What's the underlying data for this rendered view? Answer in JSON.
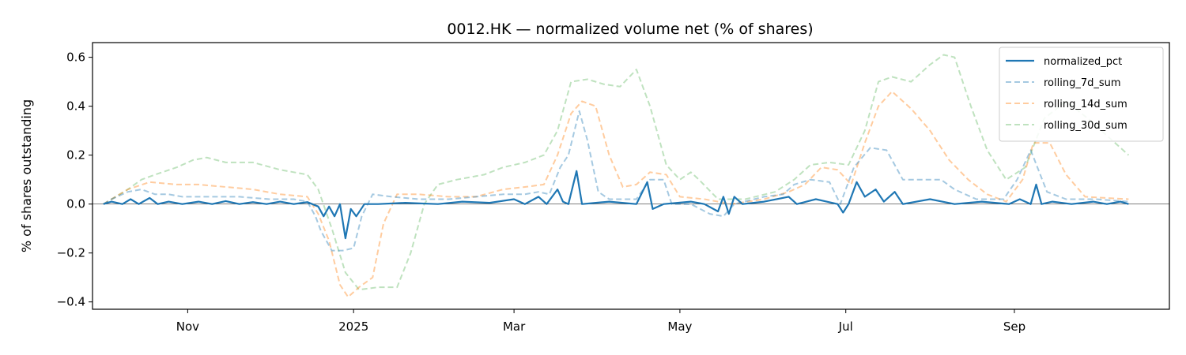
{
  "chart_data": {
    "type": "line",
    "title": "0012.HK — normalized volume net (% of shares)",
    "xlabel": "",
    "ylabel": "% of shares outstanding",
    "x_ticks": [
      {
        "date": "2024-11-01",
        "label": "Nov"
      },
      {
        "date": "2025-01-01",
        "label": "2025"
      },
      {
        "date": "2025-03-01",
        "label": "Mar"
      },
      {
        "date": "2025-05-01",
        "label": "May"
      },
      {
        "date": "2025-07-01",
        "label": "Jul"
      },
      {
        "date": "2025-09-01",
        "label": "Sep"
      }
    ],
    "xlim": [
      "2024-09-27",
      "2025-10-28"
    ],
    "y_ticks": [
      -0.4,
      -0.2,
      0.0,
      0.2,
      0.4,
      0.6
    ],
    "ylim": [
      -0.43,
      0.66
    ],
    "zero_line": true,
    "grid": false,
    "legend_position": "upper right",
    "series": [
      {
        "name": "normalized_pct",
        "color": "#1f77b4",
        "style": "solid",
        "opacity": 1.0,
        "points": [
          [
            "2024-10-01",
            0.0
          ],
          [
            "2024-10-04",
            0.01
          ],
          [
            "2024-10-08",
            0.0
          ],
          [
            "2024-10-11",
            0.02
          ],
          [
            "2024-10-14",
            0.0
          ],
          [
            "2024-10-18",
            0.025
          ],
          [
            "2024-10-21",
            0.0
          ],
          [
            "2024-10-25",
            0.01
          ],
          [
            "2024-10-30",
            0.0
          ],
          [
            "2024-11-05",
            0.01
          ],
          [
            "2024-11-10",
            0.0
          ],
          [
            "2024-11-15",
            0.012
          ],
          [
            "2024-11-20",
            0.0
          ],
          [
            "2024-11-25",
            0.008
          ],
          [
            "2024-11-30",
            0.0
          ],
          [
            "2024-12-05",
            0.01
          ],
          [
            "2024-12-10",
            0.0
          ],
          [
            "2024-12-15",
            0.008
          ],
          [
            "2024-12-19",
            -0.01
          ],
          [
            "2024-12-21",
            -0.05
          ],
          [
            "2024-12-23",
            -0.01
          ],
          [
            "2024-12-25",
            -0.05
          ],
          [
            "2024-12-27",
            0.0
          ],
          [
            "2024-12-29",
            -0.14
          ],
          [
            "2024-12-31",
            -0.02
          ],
          [
            "2025-01-02",
            -0.05
          ],
          [
            "2025-01-05",
            0.0
          ],
          [
            "2025-01-10",
            0.0
          ],
          [
            "2025-01-20",
            0.005
          ],
          [
            "2025-02-01",
            0.0
          ],
          [
            "2025-02-10",
            0.01
          ],
          [
            "2025-02-20",
            0.005
          ],
          [
            "2025-03-01",
            0.02
          ],
          [
            "2025-03-05",
            0.0
          ],
          [
            "2025-03-10",
            0.03
          ],
          [
            "2025-03-13",
            0.0
          ],
          [
            "2025-03-17",
            0.06
          ],
          [
            "2025-03-19",
            0.01
          ],
          [
            "2025-03-21",
            0.0
          ],
          [
            "2025-03-24",
            0.135
          ],
          [
            "2025-03-26",
            0.0
          ],
          [
            "2025-04-05",
            0.01
          ],
          [
            "2025-04-15",
            0.0
          ],
          [
            "2025-04-19",
            0.09
          ],
          [
            "2025-04-21",
            -0.02
          ],
          [
            "2025-04-25",
            0.0
          ],
          [
            "2025-05-05",
            0.01
          ],
          [
            "2025-05-10",
            0.0
          ],
          [
            "2025-05-15",
            -0.03
          ],
          [
            "2025-05-17",
            0.03
          ],
          [
            "2025-05-19",
            -0.04
          ],
          [
            "2025-05-21",
            0.03
          ],
          [
            "2025-05-24",
            0.0
          ],
          [
            "2025-06-01",
            0.01
          ],
          [
            "2025-06-10",
            0.03
          ],
          [
            "2025-06-13",
            0.0
          ],
          [
            "2025-06-20",
            0.02
          ],
          [
            "2025-06-28",
            0.0
          ],
          [
            "2025-06-30",
            -0.035
          ],
          [
            "2025-07-02",
            0.0
          ],
          [
            "2025-07-05",
            0.09
          ],
          [
            "2025-07-08",
            0.03
          ],
          [
            "2025-07-12",
            0.06
          ],
          [
            "2025-07-15",
            0.01
          ],
          [
            "2025-07-19",
            0.05
          ],
          [
            "2025-07-22",
            0.0
          ],
          [
            "2025-08-01",
            0.02
          ],
          [
            "2025-08-10",
            0.0
          ],
          [
            "2025-08-20",
            0.01
          ],
          [
            "2025-08-30",
            0.0
          ],
          [
            "2025-09-03",
            0.02
          ],
          [
            "2025-09-07",
            0.0
          ],
          [
            "2025-09-09",
            0.08
          ],
          [
            "2025-09-11",
            0.0
          ],
          [
            "2025-09-15",
            0.01
          ],
          [
            "2025-09-22",
            0.0
          ],
          [
            "2025-09-30",
            0.01
          ],
          [
            "2025-10-05",
            0.0
          ],
          [
            "2025-10-10",
            0.01
          ],
          [
            "2025-10-13",
            0.0
          ]
        ]
      },
      {
        "name": "rolling_7d_sum",
        "color": "#1f77b4",
        "style": "dashed",
        "opacity": 0.4,
        "points": [
          [
            "2024-10-01",
            0.0
          ],
          [
            "2024-10-04",
            0.02
          ],
          [
            "2024-10-10",
            0.05
          ],
          [
            "2024-10-15",
            0.06
          ],
          [
            "2024-10-20",
            0.04
          ],
          [
            "2024-10-25",
            0.04
          ],
          [
            "2024-10-30",
            0.03
          ],
          [
            "2024-11-10",
            0.03
          ],
          [
            "2024-11-20",
            0.03
          ],
          [
            "2024-12-01",
            0.02
          ],
          [
            "2024-12-10",
            0.02
          ],
          [
            "2024-12-15",
            0.01
          ],
          [
            "2024-12-18",
            -0.05
          ],
          [
            "2024-12-20",
            -0.11
          ],
          [
            "2024-12-24",
            -0.19
          ],
          [
            "2024-12-28",
            -0.19
          ],
          [
            "2025-01-01",
            -0.18
          ],
          [
            "2025-01-04",
            -0.05
          ],
          [
            "2025-01-08",
            0.04
          ],
          [
            "2025-01-15",
            0.03
          ],
          [
            "2025-01-25",
            0.02
          ],
          [
            "2025-02-05",
            0.02
          ],
          [
            "2025-02-15",
            0.03
          ],
          [
            "2025-02-25",
            0.04
          ],
          [
            "2025-03-05",
            0.04
          ],
          [
            "2025-03-10",
            0.05
          ],
          [
            "2025-03-14",
            0.04
          ],
          [
            "2025-03-18",
            0.15
          ],
          [
            "2025-03-21",
            0.2
          ],
          [
            "2025-03-25",
            0.38
          ],
          [
            "2025-03-28",
            0.26
          ],
          [
            "2025-04-01",
            0.05
          ],
          [
            "2025-04-05",
            0.02
          ],
          [
            "2025-04-15",
            0.02
          ],
          [
            "2025-04-20",
            0.1
          ],
          [
            "2025-04-25",
            0.1
          ],
          [
            "2025-04-28",
            0.0
          ],
          [
            "2025-05-05",
            0.0
          ],
          [
            "2025-05-12",
            -0.04
          ],
          [
            "2025-05-17",
            -0.05
          ],
          [
            "2025-05-21",
            0.0
          ],
          [
            "2025-06-01",
            0.03
          ],
          [
            "2025-06-08",
            0.04
          ],
          [
            "2025-06-12",
            0.08
          ],
          [
            "2025-06-18",
            0.1
          ],
          [
            "2025-06-25",
            0.09
          ],
          [
            "2025-06-29",
            0.0
          ],
          [
            "2025-07-04",
            0.15
          ],
          [
            "2025-07-10",
            0.23
          ],
          [
            "2025-07-16",
            0.22
          ],
          [
            "2025-07-22",
            0.1
          ],
          [
            "2025-07-30",
            0.1
          ],
          [
            "2025-08-05",
            0.1
          ],
          [
            "2025-08-10",
            0.06
          ],
          [
            "2025-08-18",
            0.02
          ],
          [
            "2025-08-28",
            0.02
          ],
          [
            "2025-09-02",
            0.1
          ],
          [
            "2025-09-07",
            0.22
          ],
          [
            "2025-09-13",
            0.05
          ],
          [
            "2025-09-20",
            0.02
          ],
          [
            "2025-10-01",
            0.02
          ],
          [
            "2025-10-13",
            0.01
          ]
        ]
      },
      {
        "name": "rolling_14d_sum",
        "color": "#ff7f0e",
        "style": "dashed",
        "opacity": 0.4,
        "points": [
          [
            "2024-10-01",
            0.0
          ],
          [
            "2024-10-04",
            0.02
          ],
          [
            "2024-10-10",
            0.06
          ],
          [
            "2024-10-18",
            0.09
          ],
          [
            "2024-10-28",
            0.08
          ],
          [
            "2024-11-05",
            0.08
          ],
          [
            "2024-11-15",
            0.07
          ],
          [
            "2024-11-25",
            0.06
          ],
          [
            "2024-12-05",
            0.04
          ],
          [
            "2024-12-15",
            0.03
          ],
          [
            "2024-12-19",
            -0.04
          ],
          [
            "2024-12-23",
            -0.15
          ],
          [
            "2024-12-27",
            -0.33
          ],
          [
            "2024-12-30",
            -0.38
          ],
          [
            "2025-01-03",
            -0.34
          ],
          [
            "2025-01-08",
            -0.3
          ],
          [
            "2025-01-12",
            -0.08
          ],
          [
            "2025-01-17",
            0.04
          ],
          [
            "2025-01-25",
            0.04
          ],
          [
            "2025-02-05",
            0.03
          ],
          [
            "2025-02-15",
            0.03
          ],
          [
            "2025-02-25",
            0.06
          ],
          [
            "2025-03-05",
            0.07
          ],
          [
            "2025-03-12",
            0.08
          ],
          [
            "2025-03-17",
            0.2
          ],
          [
            "2025-03-22",
            0.37
          ],
          [
            "2025-03-26",
            0.42
          ],
          [
            "2025-03-31",
            0.4
          ],
          [
            "2025-04-05",
            0.2
          ],
          [
            "2025-04-10",
            0.07
          ],
          [
            "2025-04-15",
            0.08
          ],
          [
            "2025-04-20",
            0.13
          ],
          [
            "2025-04-26",
            0.12
          ],
          [
            "2025-05-01",
            0.03
          ],
          [
            "2025-05-10",
            0.02
          ],
          [
            "2025-05-20",
            0.0
          ],
          [
            "2025-06-01",
            0.02
          ],
          [
            "2025-06-10",
            0.05
          ],
          [
            "2025-06-16",
            0.08
          ],
          [
            "2025-06-22",
            0.15
          ],
          [
            "2025-06-28",
            0.14
          ],
          [
            "2025-07-03",
            0.08
          ],
          [
            "2025-07-08",
            0.25
          ],
          [
            "2025-07-13",
            0.4
          ],
          [
            "2025-07-18",
            0.46
          ],
          [
            "2025-07-25",
            0.39
          ],
          [
            "2025-08-01",
            0.3
          ],
          [
            "2025-08-08",
            0.18
          ],
          [
            "2025-08-15",
            0.1
          ],
          [
            "2025-08-22",
            0.04
          ],
          [
            "2025-08-29",
            0.01
          ],
          [
            "2025-09-04",
            0.1
          ],
          [
            "2025-09-08",
            0.25
          ],
          [
            "2025-09-14",
            0.25
          ],
          [
            "2025-09-20",
            0.12
          ],
          [
            "2025-09-27",
            0.03
          ],
          [
            "2025-10-13",
            0.02
          ]
        ]
      },
      {
        "name": "rolling_30d_sum",
        "color": "#2ca02c",
        "style": "dashed",
        "opacity": 0.3,
        "points": [
          [
            "2024-10-01",
            0.0
          ],
          [
            "2024-10-04",
            0.02
          ],
          [
            "2024-10-10",
            0.06
          ],
          [
            "2024-10-15",
            0.1
          ],
          [
            "2024-10-20",
            0.12
          ],
          [
            "2024-10-28",
            0.15
          ],
          [
            "2024-11-03",
            0.18
          ],
          [
            "2024-11-08",
            0.19
          ],
          [
            "2024-11-15",
            0.17
          ],
          [
            "2024-11-25",
            0.17
          ],
          [
            "2024-12-05",
            0.14
          ],
          [
            "2024-12-15",
            0.12
          ],
          [
            "2024-12-19",
            0.06
          ],
          [
            "2024-12-24",
            -0.1
          ],
          [
            "2024-12-29",
            -0.28
          ],
          [
            "2025-01-03",
            -0.35
          ],
          [
            "2025-01-10",
            -0.34
          ],
          [
            "2025-01-17",
            -0.34
          ],
          [
            "2025-01-22",
            -0.2
          ],
          [
            "2025-01-27",
            0.0
          ],
          [
            "2025-02-01",
            0.08
          ],
          [
            "2025-02-08",
            0.1
          ],
          [
            "2025-02-18",
            0.12
          ],
          [
            "2025-02-25",
            0.15
          ],
          [
            "2025-03-05",
            0.17
          ],
          [
            "2025-03-12",
            0.2
          ],
          [
            "2025-03-17",
            0.3
          ],
          [
            "2025-03-22",
            0.5
          ],
          [
            "2025-03-28",
            0.51
          ],
          [
            "2025-04-03",
            0.49
          ],
          [
            "2025-04-09",
            0.48
          ],
          [
            "2025-04-15",
            0.55
          ],
          [
            "2025-04-20",
            0.4
          ],
          [
            "2025-04-26",
            0.16
          ],
          [
            "2025-05-01",
            0.1
          ],
          [
            "2025-05-05",
            0.13
          ],
          [
            "2025-05-08",
            0.1
          ],
          [
            "2025-05-15",
            0.02
          ],
          [
            "2025-05-25",
            0.02
          ],
          [
            "2025-06-05",
            0.05
          ],
          [
            "2025-06-12",
            0.1
          ],
          [
            "2025-06-18",
            0.16
          ],
          [
            "2025-06-25",
            0.17
          ],
          [
            "2025-07-02",
            0.16
          ],
          [
            "2025-07-08",
            0.3
          ],
          [
            "2025-07-13",
            0.5
          ],
          [
            "2025-07-18",
            0.52
          ],
          [
            "2025-07-25",
            0.5
          ],
          [
            "2025-08-01",
            0.57
          ],
          [
            "2025-08-06",
            0.61
          ],
          [
            "2025-08-10",
            0.6
          ],
          [
            "2025-08-16",
            0.4
          ],
          [
            "2025-08-22",
            0.22
          ],
          [
            "2025-08-29",
            0.1
          ],
          [
            "2025-09-05",
            0.15
          ],
          [
            "2025-09-12",
            0.35
          ],
          [
            "2025-09-20",
            0.42
          ],
          [
            "2025-09-28",
            0.35
          ],
          [
            "2025-10-05",
            0.28
          ],
          [
            "2025-10-13",
            0.2
          ]
        ]
      }
    ]
  }
}
